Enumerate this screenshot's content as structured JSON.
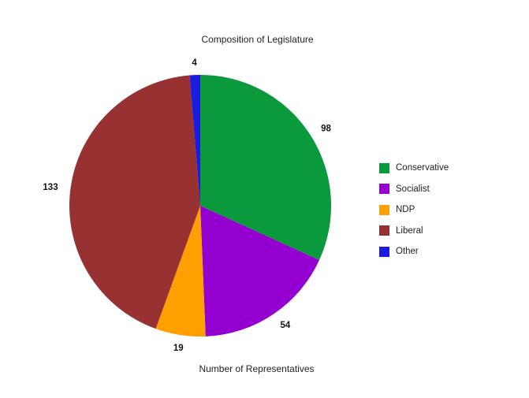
{
  "chart_data": {
    "type": "pie",
    "title": "Composition of Legislature",
    "xlabel": "Number of Representatives",
    "legend_position": "right",
    "categories": [
      "Conservative",
      "Socialist",
      "NDP",
      "Liberal",
      "Other"
    ],
    "values": [
      98,
      54,
      19,
      133,
      4
    ],
    "colors": [
      "#0a9a3c",
      "#9400cf",
      "#ff9f00",
      "#983232",
      "#1c1ce0"
    ],
    "start_angle_deg": 0,
    "direction": "clockwise"
  }
}
